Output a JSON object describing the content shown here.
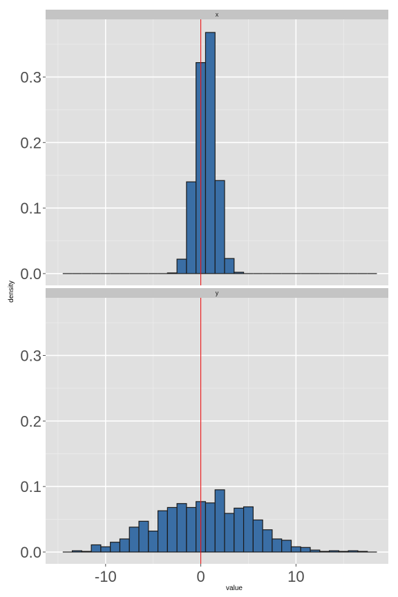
{
  "chart_data": {
    "type": "bar",
    "subtype": "faceted-histogram",
    "xlabel": "value",
    "ylabel": "density",
    "xlim": [
      -16.3,
      19.7
    ],
    "ylim": [
      -0.018,
      0.388
    ],
    "x_ticks": [
      -10,
      0,
      10
    ],
    "x_tick_labels": [
      "-10",
      "0",
      "10"
    ],
    "y_ticks": [
      0.0,
      0.1,
      0.2,
      0.3
    ],
    "y_tick_labels": [
      "0.0",
      "0.1",
      "0.2",
      "0.3"
    ],
    "vline_x": 0,
    "vline_color": "#e41a1c",
    "bar_fill": "#3a6ea5",
    "bar_stroke": "#1a1a1a",
    "panel_bg": "#e0e0e0",
    "strip_bg": "#c4c4c4",
    "bin_width": 1,
    "bin_start": -14.5,
    "series": [
      {
        "name": "x",
        "values": [
          0,
          0,
          0,
          0,
          0,
          0,
          0,
          0,
          0,
          0,
          0,
          0.001,
          0.022,
          0.14,
          0.322,
          0.368,
          0.142,
          0.023,
          0.002,
          0,
          0,
          0,
          0,
          0,
          0,
          0,
          0,
          0,
          0,
          0,
          0,
          0,
          0
        ]
      },
      {
        "name": "y",
        "values": [
          0,
          0.002,
          0.001,
          0.011,
          0.008,
          0.015,
          0.02,
          0.038,
          0.047,
          0.032,
          0.063,
          0.068,
          0.074,
          0.068,
          0.077,
          0.075,
          0.095,
          0.059,
          0.067,
          0.069,
          0.049,
          0.034,
          0.02,
          0.018,
          0.008,
          0.007,
          0.003,
          0.001,
          0.002,
          0.001,
          0.002,
          0.001,
          0
        ]
      }
    ]
  }
}
